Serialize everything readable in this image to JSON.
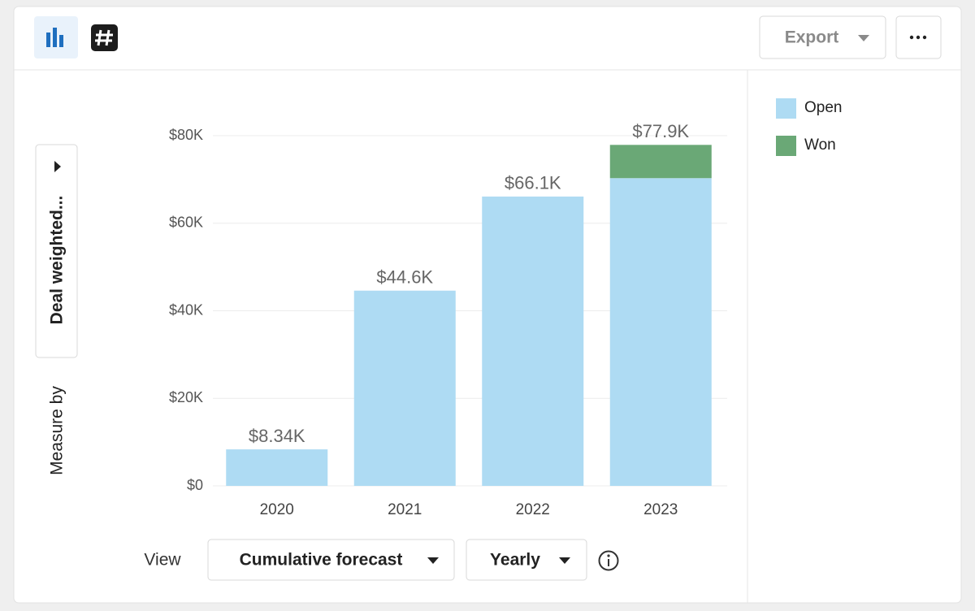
{
  "toolbar": {
    "export": "Export"
  },
  "measure": {
    "label": "Measure by",
    "value": "Deal weighted..."
  },
  "view": {
    "label": "View",
    "mode": "Cumulative forecast",
    "period": "Yearly"
  },
  "chart_data": {
    "type": "stacked-bar",
    "categories": [
      "2020",
      "2021",
      "2022",
      "2023"
    ],
    "series": [
      {
        "name": "Open",
        "color": "#aedbf3",
        "values": [
          8340,
          44600,
          66100,
          70300
        ]
      },
      {
        "name": "Won",
        "color": "#6aa876",
        "values": [
          0,
          0,
          0,
          7600
        ]
      }
    ],
    "totals": {
      "values": [
        8340,
        44600,
        66100,
        77900
      ],
      "value_labels": [
        "$8.34K",
        "$44.6K",
        "$66.1K",
        "$77.9K"
      ]
    },
    "ylim": [
      0,
      80000
    ],
    "yticks": [
      {
        "value": 0,
        "label": "$0"
      },
      {
        "value": 20000,
        "label": "$20K"
      },
      {
        "value": 40000,
        "label": "$40K"
      },
      {
        "value": 60000,
        "label": "$60K"
      },
      {
        "value": 80000,
        "label": "$80K"
      }
    ],
    "grid": true
  }
}
